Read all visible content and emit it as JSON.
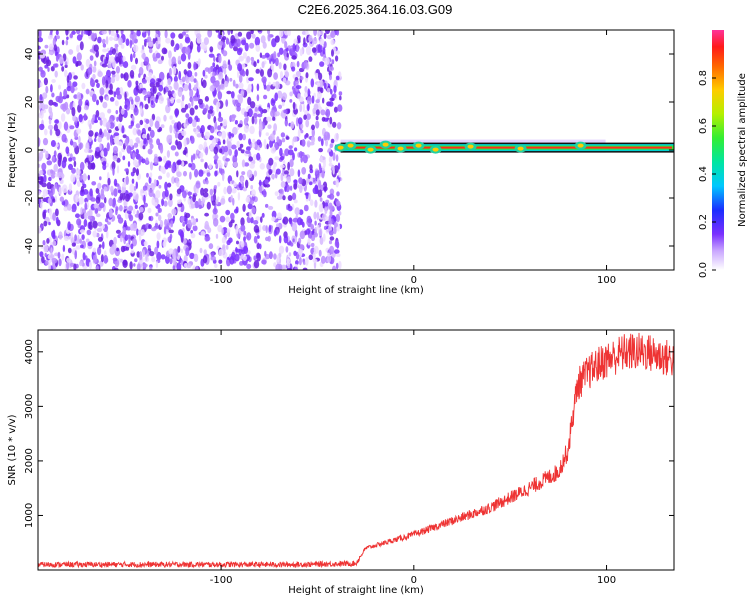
{
  "title": "C2E6.2025.364.16.03.G09",
  "colors": {
    "frame": "#000000",
    "snr_line": "#ee3333",
    "scatter": "#7a30ff",
    "background": "#ffffff"
  },
  "chart_data": [
    {
      "type": "heatmap",
      "xlabel": "Height of straight line (km)",
      "ylabel": "Frequency (Hz)",
      "xlim": [
        -195,
        135
      ],
      "ylim": [
        -50,
        50
      ],
      "xticks": [
        -100,
        0,
        100
      ],
      "yticks": [
        -40,
        -20,
        0,
        20,
        40
      ],
      "noise_region_x": [
        -195,
        -38
      ],
      "signal_band": {
        "x_start": -38,
        "x_end": 135,
        "frequency": 1
      },
      "colorbar": {
        "label": "Normalized spectral amplitude",
        "ticks": [
          0.0,
          0.2,
          0.4,
          0.6,
          0.8
        ],
        "range": [
          0,
          1
        ]
      },
      "grid": false
    },
    {
      "type": "line",
      "xlabel": "Height of straight line (km)",
      "ylabel": "SNR (10 * v/v)",
      "xlim": [
        -195,
        135
      ],
      "ylim": [
        0,
        4400
      ],
      "xticks": [
        -100,
        0,
        100
      ],
      "yticks": [
        1000,
        2000,
        3000,
        4000
      ],
      "series": [
        {
          "x": [
            -195,
            -150,
            -100,
            -60,
            -30,
            -25,
            -15,
            0,
            20,
            40,
            60,
            75,
            80,
            82,
            85,
            90,
            95,
            100,
            110,
            120,
            135
          ],
          "values": [
            100,
            100,
            100,
            100,
            120,
            400,
            500,
            650,
            900,
            1150,
            1500,
            1800,
            2200,
            2700,
            3400,
            3600,
            3750,
            3850,
            4000,
            4000,
            3850
          ]
        }
      ],
      "grid": false
    }
  ]
}
